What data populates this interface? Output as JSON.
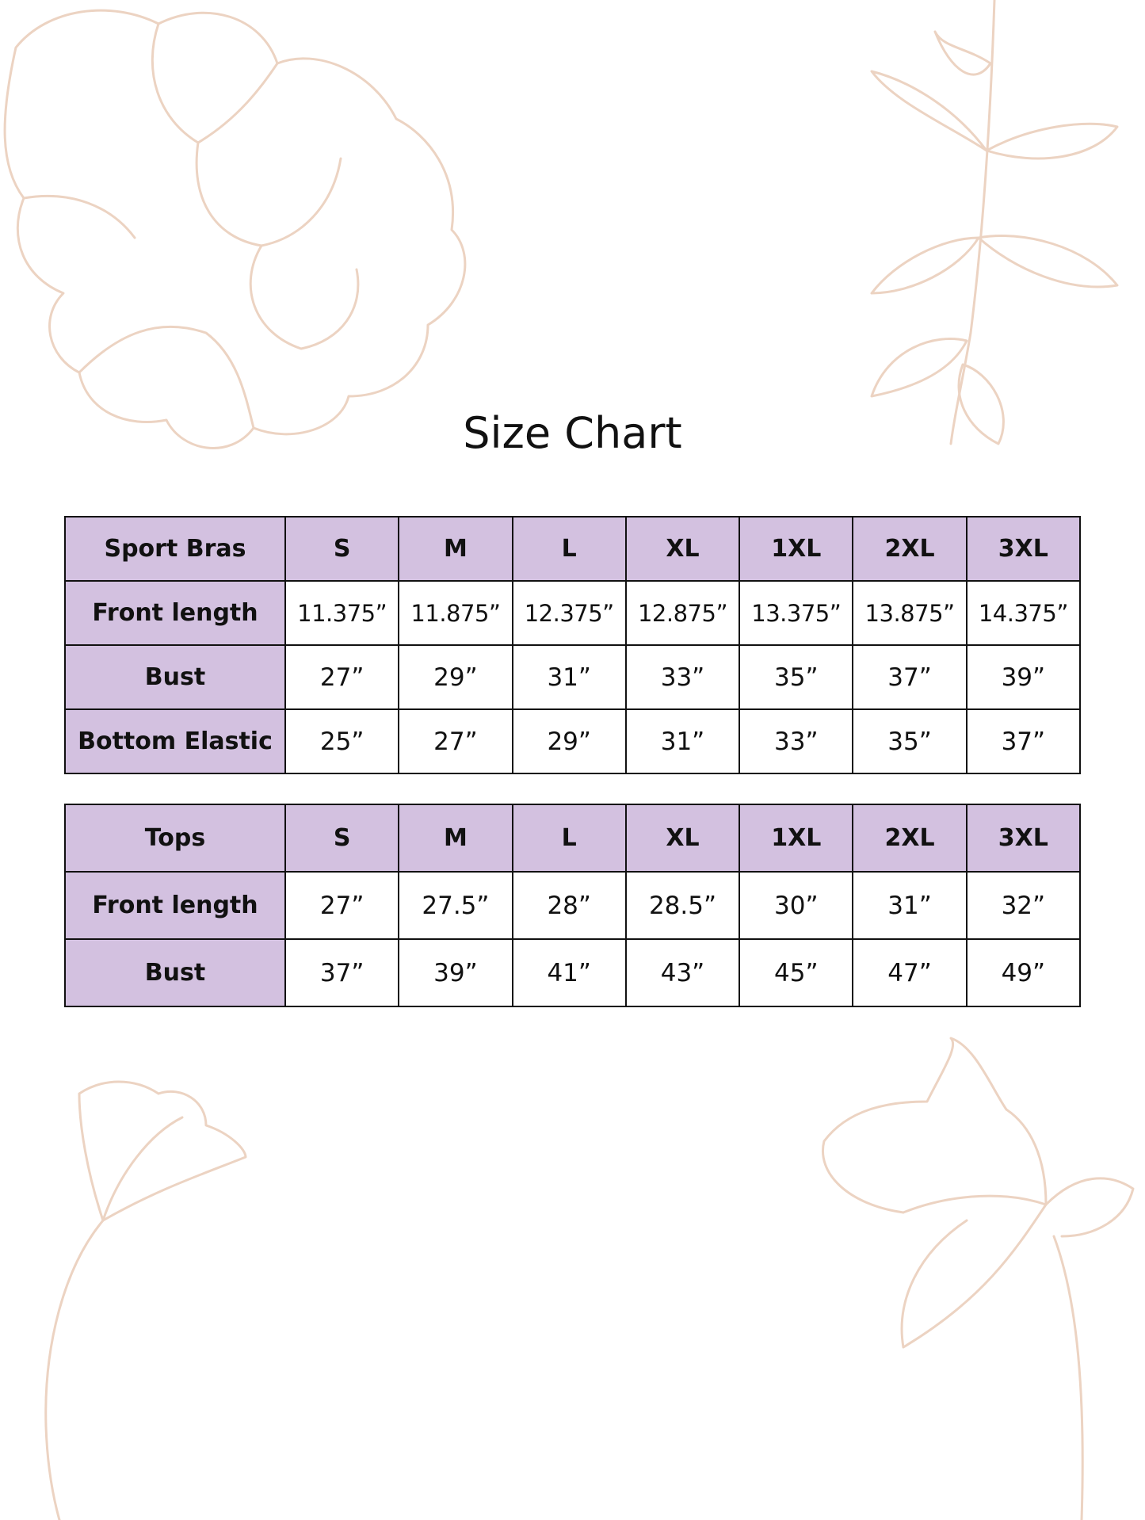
{
  "title": "Size Chart",
  "colors": {
    "header_bg": "#d3c1e0",
    "border": "#111111",
    "floral_line": "#ecd3c2"
  },
  "sport_bras": {
    "header": [
      "Sport Bras",
      "S",
      "M",
      "L",
      "XL",
      "1XL",
      "2XL",
      "3XL"
    ],
    "rows": [
      {
        "label": "Front length",
        "values": [
          "11.375”",
          "11.875”",
          "12.375”",
          "12.875”",
          "13.375”",
          "13.875”",
          "14.375”"
        ]
      },
      {
        "label": "Bust",
        "values": [
          "27”",
          "29”",
          "31”",
          "33”",
          "35”",
          "37”",
          "39”"
        ]
      },
      {
        "label": "Bottom Elastic",
        "values": [
          "25”",
          "27”",
          "29”",
          "31”",
          "33”",
          "35”",
          "37”"
        ]
      }
    ]
  },
  "tops": {
    "header": [
      "Tops",
      "S",
      "M",
      "L",
      "XL",
      "1XL",
      "2XL",
      "3XL"
    ],
    "rows": [
      {
        "label": "Front length",
        "values": [
          "27”",
          "27.5”",
          "28”",
          "28.5”",
          "30”",
          "31”",
          "32”"
        ]
      },
      {
        "label": "Bust",
        "values": [
          "37”",
          "39”",
          "41”",
          "43”",
          "45”",
          "47”",
          "49”"
        ]
      }
    ]
  }
}
